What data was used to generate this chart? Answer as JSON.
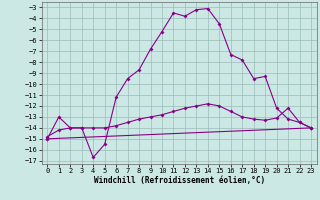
{
  "xlabel": "Windchill (Refroidissement éolien,°C)",
  "background_color": "#cbe8e4",
  "grid_color": "#9bbcb8",
  "line_color": "#880088",
  "xlim_min": -0.5,
  "xlim_max": 23.5,
  "ylim_min": -17.3,
  "ylim_max": -2.5,
  "yticks": [
    -17,
    -16,
    -15,
    -14,
    -13,
    -12,
    -11,
    -10,
    -9,
    -8,
    -7,
    -6,
    -5,
    -4,
    -3
  ],
  "xticks": [
    0,
    1,
    2,
    3,
    4,
    5,
    6,
    7,
    8,
    9,
    10,
    11,
    12,
    13,
    14,
    15,
    16,
    17,
    18,
    19,
    20,
    21,
    22,
    23
  ],
  "line1_x": [
    0,
    1,
    2,
    3,
    4,
    5,
    6,
    7,
    8,
    9,
    10,
    11,
    12,
    13,
    14,
    15,
    16,
    17,
    18,
    19,
    20,
    21,
    22,
    23
  ],
  "line1_y": [
    -15.0,
    -13.0,
    -14.0,
    -14.0,
    -16.7,
    -15.5,
    -11.2,
    -9.5,
    -8.7,
    -6.8,
    -5.2,
    -3.5,
    -3.8,
    -3.2,
    -3.1,
    -4.5,
    -7.3,
    -7.8,
    -9.5,
    -9.3,
    -12.2,
    -13.2,
    -13.5,
    -14.0
  ],
  "line2_x": [
    0,
    1,
    2,
    3,
    4,
    5,
    6,
    7,
    8,
    9,
    10,
    11,
    12,
    13,
    14,
    15,
    16,
    17,
    18,
    19,
    20,
    21,
    22,
    23
  ],
  "line2_y": [
    -14.8,
    -14.2,
    -14.0,
    -14.0,
    -14.0,
    -14.0,
    -13.8,
    -13.5,
    -13.2,
    -13.0,
    -12.8,
    -12.5,
    -12.2,
    -12.0,
    -11.8,
    -12.0,
    -12.5,
    -13.0,
    -13.2,
    -13.3,
    -13.1,
    -12.2,
    -13.5,
    -14.0
  ],
  "line3_x": [
    0,
    23
  ],
  "line3_y": [
    -15.0,
    -14.0
  ]
}
